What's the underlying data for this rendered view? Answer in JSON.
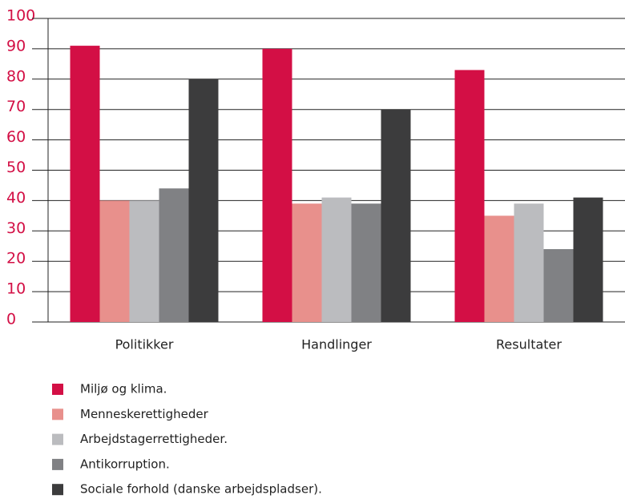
{
  "chart_data": {
    "type": "bar",
    "categories": [
      "Politikker",
      "Handlinger",
      "Resultater"
    ],
    "series": [
      {
        "name": "Miljø og klima.",
        "color": "#d30f45",
        "values": [
          91,
          90,
          83
        ]
      },
      {
        "name": "Menneskerettigheder",
        "color": "#e8908c",
        "values": [
          40,
          39,
          35
        ]
      },
      {
        "name": "Arbejdstagerrettigheder.",
        "color": "#bbbcbf",
        "values": [
          40,
          41,
          39
        ]
      },
      {
        "name": "Antikorruption.",
        "color": "#808184",
        "values": [
          44,
          39,
          24
        ]
      },
      {
        "name": "Sociale forhold (danske arbejdspladser).",
        "color": "#3c3c3d",
        "values": [
          80,
          70,
          41
        ]
      }
    ],
    "ylim": [
      0,
      100
    ],
    "yticks": [
      0,
      10,
      20,
      30,
      40,
      50,
      60,
      70,
      80,
      90,
      100
    ],
    "grid": true,
    "legend": "bottom"
  }
}
